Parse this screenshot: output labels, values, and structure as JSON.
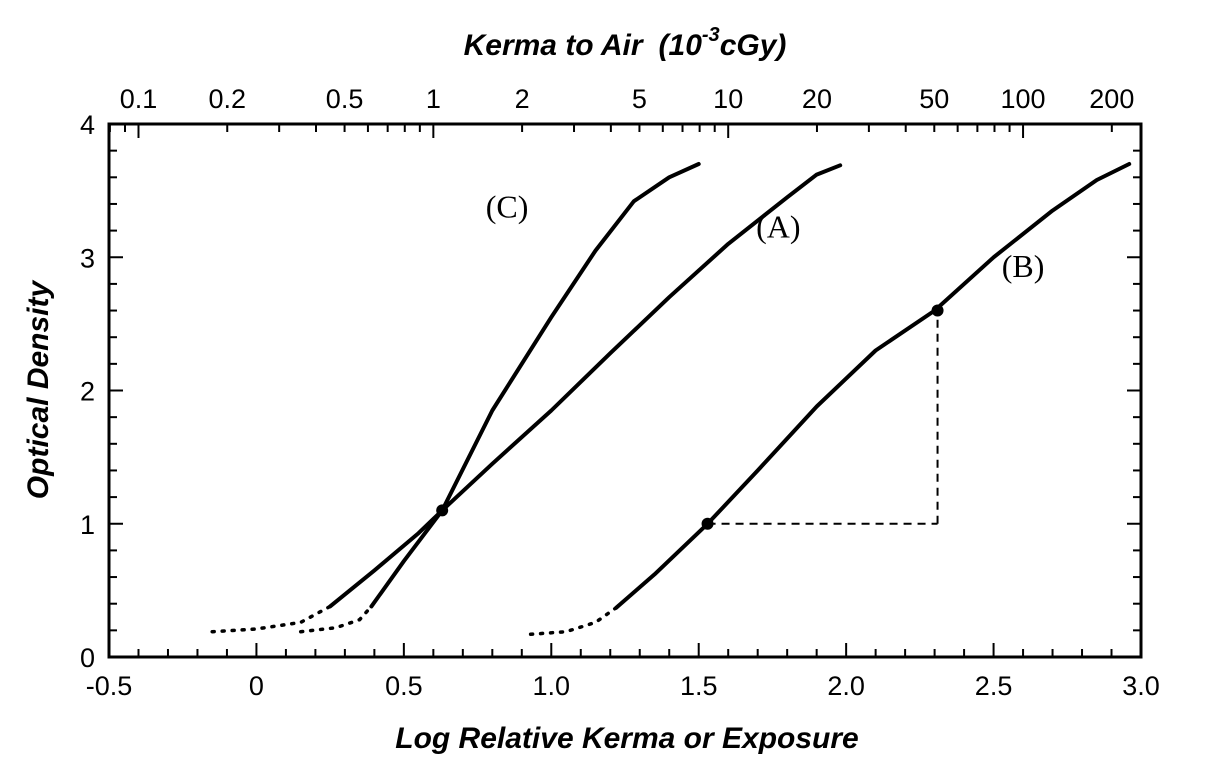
{
  "chart_data": {
    "type": "line",
    "title": "",
    "top_axis_label": "Kerma to Air",
    "top_axis_unit_prefix": "(10",
    "top_axis_unit_exp": "-3",
    "top_axis_unit_suffix": "cGy)",
    "xlabel": "Log Relative Kerma or Exposure",
    "ylabel": "Optical Density",
    "xlim": [
      -0.5,
      3.0
    ],
    "ylim": [
      0,
      4
    ],
    "x_tick_labels": [
      {
        "value": -0.5,
        "label": "-0.5"
      },
      {
        "value": 0,
        "label": "0"
      },
      {
        "value": 0.5,
        "label": "0.5"
      },
      {
        "value": 1.0,
        "label": "1.0"
      },
      {
        "value": 1.5,
        "label": "1.5"
      },
      {
        "value": 2.0,
        "label": "2.0"
      },
      {
        "value": 2.5,
        "label": "2.5"
      },
      {
        "value": 3.0,
        "label": "3.0"
      }
    ],
    "y_tick_labels": [
      {
        "value": 0,
        "label": "0"
      },
      {
        "value": 1,
        "label": "1"
      },
      {
        "value": 2,
        "label": "2"
      },
      {
        "value": 3,
        "label": "3"
      },
      {
        "value": 4,
        "label": "4"
      }
    ],
    "top_ticks": [
      {
        "kerma": 0.1,
        "label": "0.1"
      },
      {
        "kerma": 0.2,
        "label": "0.2"
      },
      {
        "kerma": 0.5,
        "label": "0.5"
      },
      {
        "kerma": 1,
        "label": "1"
      },
      {
        "kerma": 2,
        "label": "2"
      },
      {
        "kerma": 5,
        "label": "5"
      },
      {
        "kerma": 10,
        "label": "10"
      },
      {
        "kerma": 20,
        "label": "20"
      },
      {
        "kerma": 50,
        "label": "50"
      },
      {
        "kerma": 100,
        "label": "100"
      },
      {
        "kerma": 200,
        "label": "200"
      }
    ],
    "top_axis_log_offset": 0.6,
    "series": [
      {
        "name": "(A)",
        "label_at": [
          1.77,
          3.15
        ],
        "dotted": [
          [
            -0.15,
            0.19
          ],
          [
            0.0,
            0.21
          ],
          [
            0.15,
            0.26
          ],
          [
            0.25,
            0.38
          ]
        ],
        "solid": [
          [
            0.25,
            0.38
          ],
          [
            0.4,
            0.65
          ],
          [
            0.55,
            0.93
          ],
          [
            0.63,
            1.1
          ],
          [
            0.8,
            1.45
          ],
          [
            1.0,
            1.85
          ],
          [
            1.2,
            2.28
          ],
          [
            1.4,
            2.7
          ],
          [
            1.6,
            3.1
          ],
          [
            1.8,
            3.45
          ],
          [
            1.9,
            3.62
          ],
          [
            1.98,
            3.69
          ]
        ]
      },
      {
        "name": "(B)",
        "label_at": [
          2.6,
          2.85
        ],
        "dotted": [
          [
            0.93,
            0.17
          ],
          [
            1.05,
            0.19
          ],
          [
            1.15,
            0.26
          ],
          [
            1.22,
            0.37
          ]
        ],
        "solid": [
          [
            1.22,
            0.37
          ],
          [
            1.35,
            0.62
          ],
          [
            1.53,
            1.0
          ],
          [
            1.7,
            1.4
          ],
          [
            1.9,
            1.88
          ],
          [
            2.1,
            2.3
          ],
          [
            2.3,
            2.6
          ],
          [
            2.5,
            3.0
          ],
          [
            2.7,
            3.35
          ],
          [
            2.85,
            3.58
          ],
          [
            2.96,
            3.7
          ]
        ]
      },
      {
        "name": "(C)",
        "label_at": [
          0.85,
          3.3
        ],
        "dotted": [
          [
            0.15,
            0.19
          ],
          [
            0.27,
            0.22
          ],
          [
            0.35,
            0.28
          ],
          [
            0.39,
            0.38
          ]
        ],
        "solid": [
          [
            0.39,
            0.38
          ],
          [
            0.5,
            0.72
          ],
          [
            0.63,
            1.1
          ],
          [
            0.8,
            1.85
          ],
          [
            1.0,
            2.55
          ],
          [
            1.15,
            3.05
          ],
          [
            1.28,
            3.42
          ],
          [
            1.4,
            3.6
          ],
          [
            1.5,
            3.7
          ]
        ]
      }
    ],
    "marked_points": [
      [
        0.63,
        1.1
      ],
      [
        1.53,
        1.0
      ],
      [
        2.31,
        2.6
      ]
    ],
    "gradient_lines": [
      [
        [
          1.53,
          1.0
        ],
        [
          2.31,
          1.0
        ]
      ],
      [
        [
          2.31,
          1.0
        ],
        [
          2.31,
          2.6
        ]
      ]
    ],
    "grid": false,
    "legend": "none"
  }
}
